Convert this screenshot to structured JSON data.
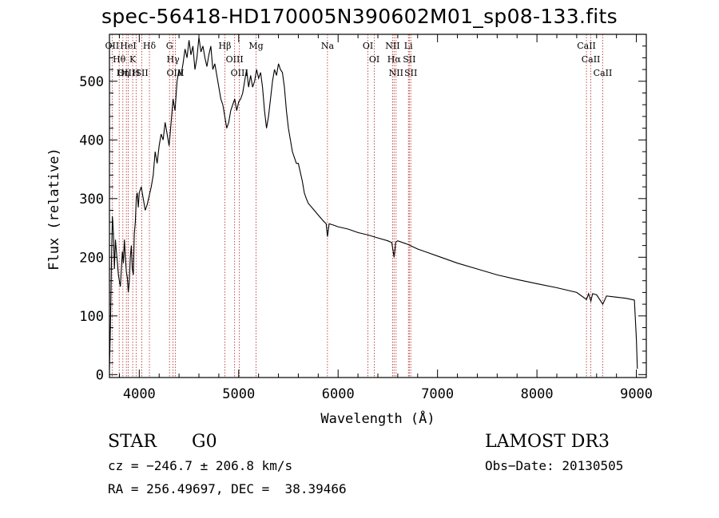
{
  "chart_data": {
    "type": "line",
    "title": "spec-56418-HD170005N390602M01_sp08-133.fits",
    "xlabel": "Wavelength (Å)",
    "ylabel": "Flux (relative)",
    "xlim": [
      3700,
      9100
    ],
    "ylim": [
      -5,
      580
    ],
    "xticks": [
      4000,
      5000,
      6000,
      7000,
      8000,
      9000
    ],
    "yticks": [
      0,
      100,
      200,
      300,
      400,
      500
    ],
    "series": [
      {
        "name": "spectrum",
        "color": "#000000",
        "x": [
          3700,
          3710,
          3720,
          3730,
          3740,
          3750,
          3760,
          3770,
          3780,
          3790,
          3800,
          3810,
          3820,
          3830,
          3840,
          3850,
          3860,
          3870,
          3880,
          3890,
          3900,
          3910,
          3920,
          3930,
          3940,
          3950,
          3960,
          3970,
          3980,
          3990,
          4000,
          4020,
          4040,
          4060,
          4080,
          4100,
          4120,
          4140,
          4160,
          4180,
          4200,
          4220,
          4240,
          4260,
          4280,
          4300,
          4320,
          4340,
          4360,
          4380,
          4400,
          4420,
          4440,
          4460,
          4480,
          4500,
          4520,
          4540,
          4560,
          4580,
          4600,
          4620,
          4640,
          4660,
          4680,
          4700,
          4720,
          4740,
          4760,
          4780,
          4800,
          4820,
          4840,
          4860,
          4880,
          4900,
          4920,
          4940,
          4960,
          4980,
          5000,
          5020,
          5040,
          5060,
          5080,
          5100,
          5120,
          5140,
          5160,
          5180,
          5200,
          5220,
          5240,
          5260,
          5280,
          5300,
          5320,
          5340,
          5360,
          5380,
          5400,
          5420,
          5440,
          5460,
          5480,
          5500,
          5520,
          5540,
          5560,
          5580,
          5600,
          5620,
          5640,
          5660,
          5680,
          5700,
          5750,
          5800,
          5850,
          5880,
          5893,
          5910,
          5950,
          6000,
          6100,
          6200,
          6300,
          6400,
          6500,
          6540,
          6563,
          6580,
          6600,
          6700,
          6800,
          6900,
          7000,
          7200,
          7400,
          7600,
          7800,
          8000,
          8200,
          8400,
          8498,
          8520,
          8542,
          8560,
          8600,
          8662,
          8700,
          8800,
          8900,
          8950,
          8980,
          9000,
          9010
        ],
        "y": [
          10,
          80,
          190,
          270,
          240,
          180,
          230,
          210,
          190,
          170,
          160,
          150,
          180,
          210,
          190,
          230,
          200,
          175,
          165,
          140,
          160,
          200,
          220,
          180,
          170,
          240,
          260,
          300,
          310,
          285,
          310,
          320,
          300,
          280,
          290,
          305,
          320,
          340,
          380,
          360,
          390,
          410,
          400,
          430,
          410,
          390,
          430,
          470,
          450,
          500,
          520,
          510,
          530,
          555,
          540,
          570,
          545,
          560,
          520,
          540,
          575,
          550,
          560,
          540,
          525,
          545,
          560,
          520,
          530,
          510,
          490,
          470,
          460,
          440,
          420,
          430,
          450,
          460,
          470,
          450,
          465,
          470,
          480,
          500,
          520,
          490,
          510,
          490,
          500,
          520,
          505,
          515,
          490,
          450,
          420,
          440,
          470,
          500,
          520,
          510,
          530,
          520,
          515,
          490,
          450,
          420,
          400,
          380,
          370,
          360,
          360,
          345,
          330,
          310,
          300,
          292,
          282,
          272,
          262,
          257,
          235,
          257,
          255,
          252,
          248,
          242,
          238,
          233,
          228,
          225,
          200,
          226,
          228,
          222,
          214,
          208,
          202,
          190,
          180,
          170,
          162,
          155,
          148,
          140,
          128,
          138,
          125,
          138,
          136,
          120,
          134,
          132,
          130,
          128,
          127,
          60,
          10
        ]
      }
    ],
    "lines": [
      {
        "wavelength": 3727,
        "label": "OII"
      },
      {
        "wavelength": 3798,
        "label": "Hθ"
      },
      {
        "wavelength": 3835,
        "label": "Hη"
      },
      {
        "wavelength": 3870,
        "label": "OIII"
      },
      {
        "wavelength": 3889,
        "label": "HeI"
      },
      {
        "wavelength": 3934,
        "label": "K"
      },
      {
        "wavelength": 3968,
        "label": "H"
      },
      {
        "wavelength": 4026,
        "label": "SII"
      },
      {
        "wavelength": 4102,
        "label": "Hδ"
      },
      {
        "wavelength": 4304,
        "label": "G"
      },
      {
        "wavelength": 4340,
        "label": "Hγ"
      },
      {
        "wavelength": 4363,
        "label": "OIII"
      },
      {
        "wavelength": 4861,
        "label": "Hβ"
      },
      {
        "wavelength": 4959,
        "label": "OIII"
      },
      {
        "wavelength": 5007,
        "label": "OIII"
      },
      {
        "wavelength": 5175,
        "label": "Mg"
      },
      {
        "wavelength": 5893,
        "label": "Na"
      },
      {
        "wavelength": 6300,
        "label": "OI"
      },
      {
        "wavelength": 6364,
        "label": "OI"
      },
      {
        "wavelength": 6548,
        "label": "NII"
      },
      {
        "wavelength": 6563,
        "label": "Hα"
      },
      {
        "wavelength": 6583,
        "label": "NII"
      },
      {
        "wavelength": 6707,
        "label": "Li"
      },
      {
        "wavelength": 6716,
        "label": "SII"
      },
      {
        "wavelength": 6731,
        "label": "SII"
      },
      {
        "wavelength": 8498,
        "label": "CaII"
      },
      {
        "wavelength": 8542,
        "label": "CaII"
      },
      {
        "wavelength": 8662,
        "label": "CaII"
      }
    ],
    "line_color": "#b22222"
  },
  "info": {
    "class": "STAR",
    "subclass": "G0",
    "survey": "LAMOST DR3",
    "cz": "cz = −246.7 ± 206.8 km/s",
    "obs_date": "Obs−Date: 20130505",
    "coords": "RA = 256.49697, DEC =  38.39466"
  }
}
